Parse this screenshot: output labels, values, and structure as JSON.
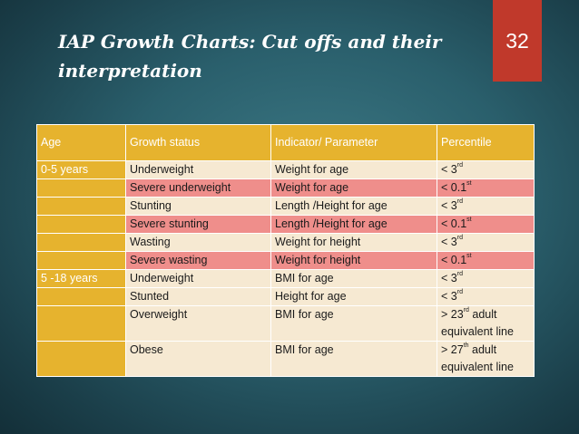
{
  "slide": {
    "title": "IAP Growth Charts: Cut offs and their interpretation",
    "number": "32"
  },
  "table": {
    "headers": [
      "Age",
      "Growth status",
      "Indicator/ Parameter",
      "Percentile"
    ],
    "rows": [
      {
        "age": "0-5 years",
        "status": "Underweight",
        "indicator": "Weight for age",
        "p_main": "< 3",
        "p_sup": "rd",
        "p_rest": ""
      },
      {
        "age": "",
        "status": "Severe underweight",
        "indicator": "Weight for age",
        "p_main": "< 0.1",
        "p_sup": "st",
        "p_rest": ""
      },
      {
        "age": "",
        "status": "Stunting",
        "indicator": "Length /Height for age",
        "p_main": "< 3",
        "p_sup": "rd",
        "p_rest": ""
      },
      {
        "age": "",
        "status": "Severe stunting",
        "indicator": "Length /Height for age",
        "p_main": "< 0.1",
        "p_sup": "st",
        "p_rest": ""
      },
      {
        "age": "",
        "status": "Wasting",
        "indicator": "Weight for height",
        "p_main": "< 3",
        "p_sup": "rd",
        "p_rest": ""
      },
      {
        "age": "",
        "status": "Severe wasting",
        "indicator": "Weight for height",
        "p_main": "< 0.1",
        "p_sup": "st",
        "p_rest": ""
      },
      {
        "age": "5 -18 years",
        "status": "Underweight",
        "indicator": "BMI for age",
        "p_main": "< 3",
        "p_sup": "rd",
        "p_rest": ""
      },
      {
        "age": "",
        "status": "Stunted",
        "indicator": "Height for age",
        "p_main": "< 3",
        "p_sup": "rd",
        "p_rest": ""
      },
      {
        "age": "",
        "status": "Overweight",
        "indicator": "BMI for age",
        "p_main": "> 23",
        "p_sup": "rd",
        "p_rest": " adult equivalent line"
      },
      {
        "age": "",
        "status": "Obese",
        "indicator": "BMI for age",
        "p_main": "> 27",
        "p_sup": "th",
        "p_rest": " adult equivalent line"
      }
    ]
  },
  "colors": {
    "header": "#e6b32e",
    "row_light": "#f6e9d2",
    "row_pink": "#ef8e8b",
    "slide_number_bg": "#c0392b"
  }
}
